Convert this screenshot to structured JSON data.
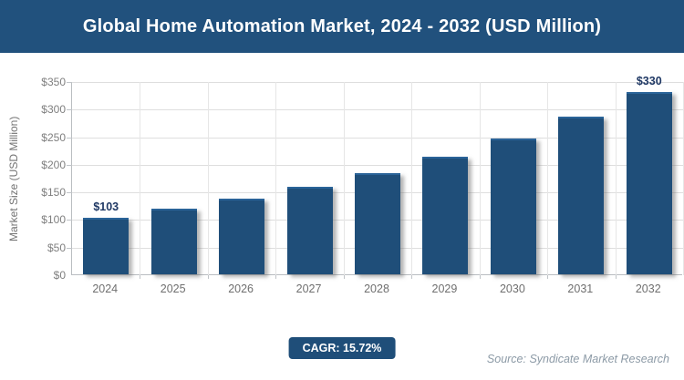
{
  "header": {
    "title": "Global Home Automation Market, 2024 - 2032 (USD Million)",
    "bg_color": "#21517D",
    "text_color": "#FFFFFF"
  },
  "chart_data": {
    "type": "bar",
    "title": "Global Home Automation Market, 2024 - 2032 (USD Million)",
    "categories": [
      "2024",
      "2025",
      "2026",
      "2027",
      "2028",
      "2029",
      "2030",
      "2031",
      "2032"
    ],
    "values": [
      103,
      119,
      137,
      159,
      184,
      213,
      246,
      285,
      330
    ],
    "value_labels": [
      "$103",
      "",
      "",
      "",
      "",
      "",
      "",
      "",
      "$330"
    ],
    "xlabel": "",
    "ylabel": "Market Size (USD Million)",
    "ylim": [
      0,
      350
    ],
    "y_tick_interval": 50,
    "y_tick_labels": [
      "$350",
      "$300",
      "$250",
      "$200",
      "$150",
      "$100",
      "$50",
      "$0"
    ],
    "grid": true,
    "legend": "none",
    "bar_color": "#1F4E79",
    "value_label_color": "#1F3864",
    "gridline_color": "#DEDEDE"
  },
  "footer": {
    "cagr_label": "CAGR: 15.72%",
    "source": "Source: Syndicate Market Research",
    "badge_color": "#1F4E79"
  }
}
